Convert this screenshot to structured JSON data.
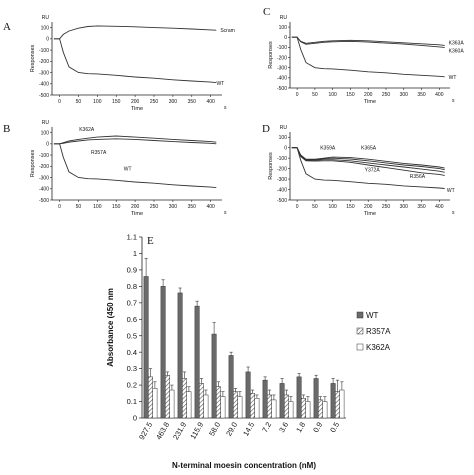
{
  "chart_data": [
    {
      "panel": "A",
      "type": "line",
      "unit_label": "RU",
      "xlabel": "Time",
      "xunit": "s",
      "ylabel": "Responses",
      "xlim": [
        -20,
        430
      ],
      "ylim": [
        -500,
        150
      ],
      "xticks": [
        0,
        50,
        100,
        150,
        200,
        250,
        300,
        350,
        400
      ],
      "yticks": [
        100,
        0,
        -100,
        -200,
        -300,
        -400,
        -500
      ],
      "series": [
        {
          "name": "Scram",
          "x": [
            -15,
            0,
            10,
            25,
            50,
            75,
            100,
            150,
            200,
            250,
            300,
            350,
            400,
            415
          ],
          "y": [
            0,
            0,
            40,
            70,
            95,
            110,
            115,
            112,
            107,
            100,
            95,
            88,
            80,
            77
          ]
        },
        {
          "name": "WT",
          "x": [
            -15,
            0,
            10,
            25,
            50,
            75,
            100,
            150,
            200,
            250,
            300,
            350,
            400,
            415
          ],
          "y": [
            0,
            0,
            -120,
            -250,
            -300,
            -310,
            -312,
            -325,
            -340,
            -350,
            -365,
            -375,
            -385,
            -390
          ]
        }
      ]
    },
    {
      "panel": "B",
      "type": "line",
      "unit_label": "RU",
      "xlabel": "Time",
      "xunit": "s",
      "ylabel": "Responses",
      "xlim": [
        -20,
        430
      ],
      "ylim": [
        -500,
        150
      ],
      "xticks": [
        0,
        50,
        100,
        150,
        200,
        250,
        300,
        350,
        400
      ],
      "yticks": [
        100,
        0,
        -100,
        -200,
        -300,
        -400,
        -500
      ],
      "series": [
        {
          "name": "K362A",
          "x": [
            -15,
            0,
            10,
            25,
            50,
            75,
            100,
            150,
            200,
            250,
            300,
            350,
            400,
            415
          ],
          "y": [
            0,
            0,
            10,
            25,
            40,
            50,
            60,
            70,
            60,
            50,
            40,
            30,
            20,
            15
          ]
        },
        {
          "name": "R357A",
          "x": [
            -15,
            0,
            10,
            25,
            50,
            75,
            100,
            150,
            200,
            250,
            300,
            350,
            400,
            415
          ],
          "y": [
            0,
            0,
            5,
            15,
            25,
            35,
            40,
            45,
            40,
            30,
            20,
            12,
            5,
            0
          ]
        },
        {
          "name": "WT",
          "x": [
            -15,
            0,
            10,
            25,
            50,
            75,
            100,
            150,
            200,
            250,
            300,
            350,
            400,
            415
          ],
          "y": [
            0,
            0,
            -120,
            -250,
            -300,
            -310,
            -312,
            -325,
            -340,
            -350,
            -365,
            -375,
            -385,
            -390
          ]
        }
      ]
    },
    {
      "panel": "C",
      "type": "line",
      "unit_label": "RU",
      "xlabel": "Time",
      "xunit": "s",
      "ylabel": "Responses",
      "xlim": [
        -20,
        430
      ],
      "ylim": [
        -500,
        150
      ],
      "xticks": [
        0,
        50,
        100,
        150,
        200,
        250,
        300,
        350,
        400
      ],
      "yticks": [
        100,
        0,
        -100,
        -200,
        -300,
        -400,
        -500
      ],
      "series": [
        {
          "name": "K363A",
          "x": [
            -15,
            0,
            10,
            25,
            50,
            75,
            100,
            150,
            200,
            250,
            300,
            350,
            400,
            415
          ],
          "y": [
            0,
            0,
            -40,
            -60,
            -50,
            -40,
            -35,
            -30,
            -35,
            -45,
            -55,
            -65,
            -75,
            -80
          ]
        },
        {
          "name": "K360A",
          "x": [
            -15,
            0,
            10,
            25,
            50,
            75,
            100,
            150,
            200,
            250,
            300,
            350,
            400,
            415
          ],
          "y": [
            0,
            0,
            -45,
            -70,
            -60,
            -50,
            -45,
            -40,
            -48,
            -58,
            -68,
            -80,
            -95,
            -100
          ]
        },
        {
          "name": "WT",
          "x": [
            -15,
            0,
            10,
            25,
            50,
            75,
            100,
            150,
            200,
            250,
            300,
            350,
            400,
            415
          ],
          "y": [
            0,
            0,
            -120,
            -250,
            -300,
            -310,
            -312,
            -325,
            -340,
            -350,
            -365,
            -375,
            -385,
            -390
          ]
        }
      ]
    },
    {
      "panel": "D",
      "type": "line",
      "unit_label": "RU",
      "xlabel": "Time",
      "xunit": "s",
      "ylabel": "Responses",
      "xlim": [
        -20,
        430
      ],
      "ylim": [
        -500,
        150
      ],
      "xticks": [
        0,
        50,
        100,
        150,
        200,
        250,
        300,
        350,
        400
      ],
      "yticks": [
        100,
        0,
        -100,
        -200,
        -300,
        -400,
        -500
      ],
      "series": [
        {
          "name": "K359A",
          "x": [
            -15,
            0,
            10,
            25,
            50,
            75,
            100,
            150,
            200,
            250,
            300,
            350,
            400,
            415
          ],
          "y": [
            0,
            0,
            -70,
            -110,
            -110,
            -100,
            -90,
            -95,
            -110,
            -130,
            -150,
            -165,
            -185,
            -195
          ]
        },
        {
          "name": "K365A",
          "x": [
            -15,
            0,
            10,
            25,
            50,
            75,
            100,
            150,
            200,
            250,
            300,
            350,
            400,
            415
          ],
          "y": [
            0,
            0,
            -75,
            -115,
            -115,
            -105,
            -100,
            -108,
            -125,
            -145,
            -165,
            -180,
            -200,
            -210
          ]
        },
        {
          "name": "Y372A",
          "x": [
            -15,
            0,
            10,
            25,
            50,
            75,
            100,
            150,
            200,
            250,
            300,
            350,
            400,
            415
          ],
          "y": [
            0,
            0,
            -80,
            -120,
            -120,
            -115,
            -115,
            -125,
            -145,
            -165,
            -185,
            -205,
            -225,
            -235
          ]
        },
        {
          "name": "R356A",
          "x": [
            -15,
            0,
            10,
            25,
            50,
            75,
            100,
            150,
            200,
            250,
            300,
            350,
            400,
            415
          ],
          "y": [
            0,
            0,
            -85,
            -125,
            -128,
            -125,
            -125,
            -140,
            -165,
            -190,
            -215,
            -240,
            -255,
            -265
          ]
        },
        {
          "name": "WT",
          "x": [
            -15,
            0,
            10,
            25,
            50,
            75,
            100,
            150,
            200,
            250,
            300,
            350,
            400,
            415
          ],
          "y": [
            0,
            0,
            -120,
            -250,
            -300,
            -310,
            -312,
            -325,
            -340,
            -350,
            -365,
            -375,
            -385,
            -390
          ]
        }
      ]
    },
    {
      "panel": "E",
      "type": "bar",
      "xlabel": "N-terminal moesin concentration (nM)",
      "ylabel": "Absorbance (450 nm",
      "ylim": [
        0,
        1.1
      ],
      "yticks": [
        0,
        0.1,
        0.2,
        0.3,
        0.4,
        0.5,
        0.6,
        0.7,
        0.8,
        0.9,
        1,
        1.1
      ],
      "categories": [
        "927.5",
        "463.8",
        "231.9",
        "115.9",
        "58.0",
        "29.0",
        "14.5",
        "7.2",
        "3.6",
        "1.8",
        "0.9",
        "0.5"
      ],
      "legend_position": "right",
      "series": [
        {
          "name": "WT",
          "fill": "dark-gray",
          "values": [
            0.86,
            0.8,
            0.76,
            0.68,
            0.51,
            0.38,
            0.28,
            0.23,
            0.21,
            0.25,
            0.24,
            0.21
          ],
          "errors": [
            0.11,
            0.04,
            0.03,
            0.03,
            0.07,
            0.02,
            0.03,
            0.02,
            0.03,
            0.02,
            0.02,
            0.03
          ]
        },
        {
          "name": "R357A",
          "fill": "hatched",
          "values": [
            0.25,
            0.26,
            0.24,
            0.21,
            0.19,
            0.16,
            0.15,
            0.14,
            0.14,
            0.12,
            0.11,
            0.16
          ],
          "errors": [
            0.05,
            0.02,
            0.04,
            0.03,
            0.03,
            0.02,
            0.02,
            0.03,
            0.03,
            0.02,
            0.02,
            0.07
          ]
        },
        {
          "name": "K362A",
          "fill": "white",
          "values": [
            0.18,
            0.17,
            0.16,
            0.14,
            0.13,
            0.13,
            0.12,
            0.11,
            0.1,
            0.1,
            0.1,
            0.17
          ],
          "errors": [
            0.04,
            0.03,
            0.03,
            0.03,
            0.03,
            0.03,
            0.02,
            0.03,
            0.03,
            0.03,
            0.03,
            0.05
          ]
        }
      ]
    }
  ]
}
